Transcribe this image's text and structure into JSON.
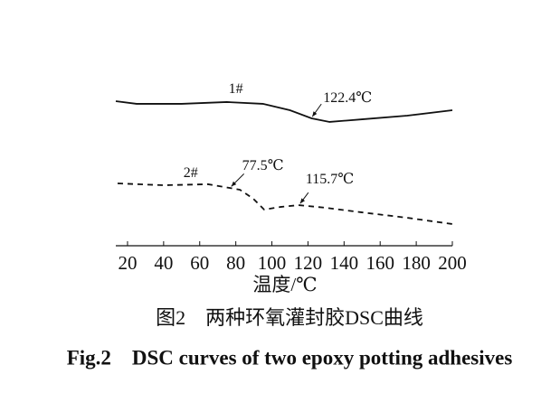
{
  "chart_data": {
    "type": "line",
    "xlabel": "温度/℃",
    "caption_cn": "图2　两种环氧灌封胶DSC曲线",
    "caption_en": "Fig.2　DSC curves of two epoxy potting adhesives",
    "xlim": [
      13.5,
      200
    ],
    "ylim": [
      0,
      100
    ],
    "xticks": [
      20,
      40,
      60,
      80,
      100,
      120,
      140,
      160,
      180,
      200
    ],
    "series": [
      {
        "name": "1#",
        "color": "#111111",
        "dash": false,
        "x": [
          13.5,
          25,
          50,
          75,
          95,
          110,
          122,
          132,
          150,
          175,
          200
        ],
        "values": [
          87.9,
          86.3,
          86.3,
          87.4,
          86.3,
          82.4,
          77.5,
          75.3,
          76.9,
          79.1,
          82.4
        ]
      },
      {
        "name": "2#",
        "color": "#111111",
        "dash": true,
        "x": [
          14.5,
          39.6,
          64.6,
          82.2,
          89.7,
          95.7,
          104.8,
          114.8,
          129.8,
          149.9,
          175,
          200
        ],
        "values": [
          37.9,
          36.8,
          37.4,
          34.1,
          28.6,
          22.0,
          23.6,
          24.7,
          23.1,
          20.3,
          17.0,
          13.2
        ]
      }
    ],
    "annotations": [
      {
        "series": 0,
        "value": 122.4,
        "label": "122.4℃"
      },
      {
        "series": 1,
        "value": 77.5,
        "label": "77.5℃"
      },
      {
        "series": 1,
        "value": 115.7,
        "label": "115.7℃"
      }
    ]
  }
}
